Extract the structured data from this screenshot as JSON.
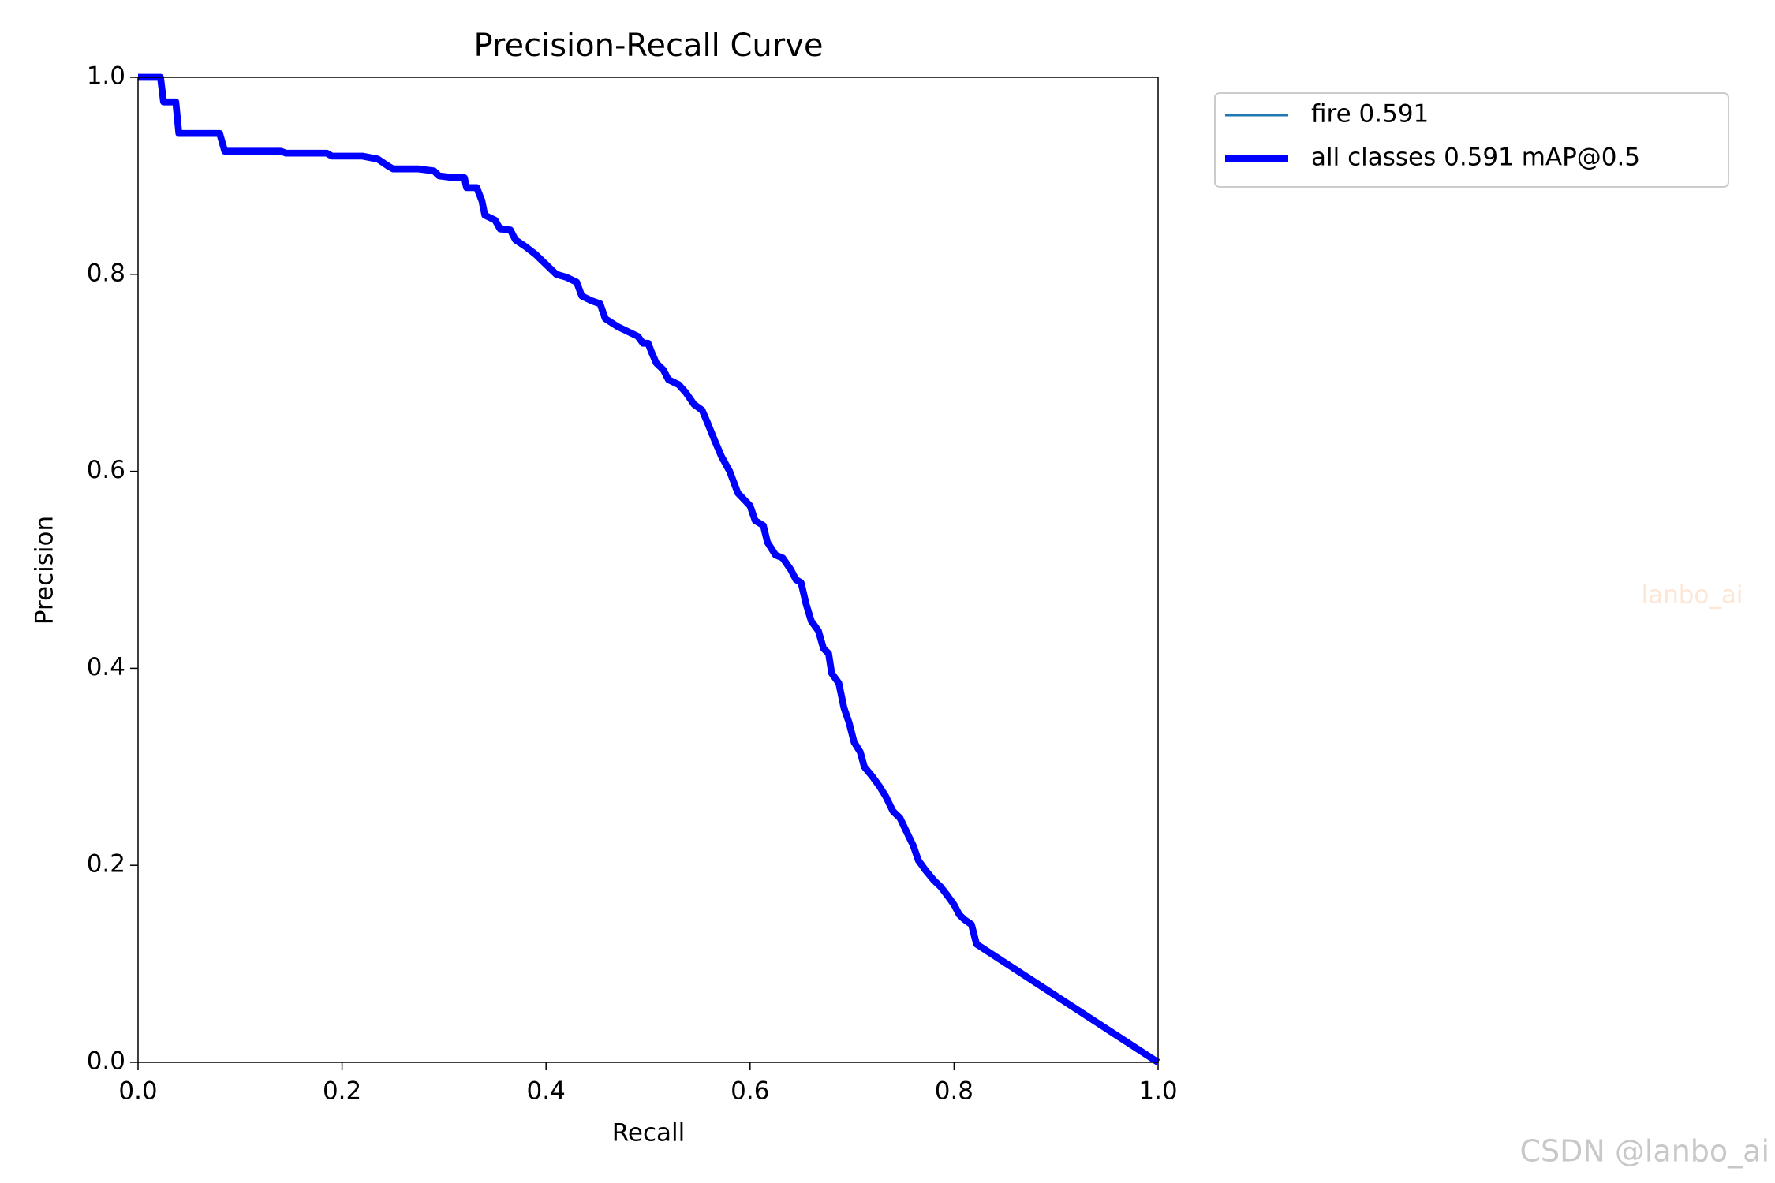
{
  "chart_data": {
    "type": "line",
    "title": "Precision-Recall Curve",
    "xlabel": "Recall",
    "ylabel": "Precision",
    "xlim": [
      0,
      1
    ],
    "ylim": [
      0,
      1
    ],
    "xticks": [
      {
        "value": 0,
        "label": "0.0"
      },
      0.2,
      0.4,
      0.6,
      0.8,
      {
        "value": 1,
        "label": "1.0"
      }
    ],
    "yticks": [
      {
        "value": 0,
        "label": "0.0"
      },
      0.2,
      0.4,
      0.6,
      0.8,
      {
        "value": 1,
        "label": "1.0"
      }
    ],
    "legend": "outside upper right",
    "x": [
      0,
      0.022,
      0.025,
      0.037,
      0.04,
      0.08,
      0.085,
      0.14,
      0.145,
      0.185,
      0.19,
      0.22,
      0.235,
      0.245,
      0.25,
      0.275,
      0.29,
      0.295,
      0.31,
      0.32,
      0.322,
      0.332,
      0.337,
      0.34,
      0.35,
      0.355,
      0.365,
      0.37,
      0.38,
      0.39,
      0.4,
      0.41,
      0.42,
      0.43,
      0.435,
      0.445,
      0.453,
      0.458,
      0.47,
      0.48,
      0.49,
      0.495,
      0.5,
      0.503,
      0.508,
      0.515,
      0.52,
      0.53,
      0.537,
      0.545,
      0.553,
      0.558,
      0.565,
      0.572,
      0.58,
      0.588,
      0.6,
      0.605,
      0.613,
      0.617,
      0.625,
      0.632,
      0.64,
      0.645,
      0.65,
      0.655,
      0.66,
      0.667,
      0.672,
      0.677,
      0.68,
      0.687,
      0.692,
      0.697,
      0.702,
      0.708,
      0.712,
      0.72,
      0.727,
      0.733,
      0.74,
      0.747,
      0.753,
      0.76,
      0.765,
      0.772,
      0.78,
      0.787,
      0.793,
      0.8,
      0.805,
      0.81,
      0.817,
      0.822,
      1.0
    ],
    "series": [
      {
        "name": "fire 0.591",
        "color": "#1f77b4",
        "width": 1,
        "values": [
          1,
          1,
          0.975,
          0.975,
          0.943,
          0.943,
          0.925,
          0.925,
          0.923,
          0.923,
          0.92,
          0.92,
          0.917,
          0.91,
          0.907,
          0.907,
          0.905,
          0.9,
          0.898,
          0.898,
          0.888,
          0.888,
          0.875,
          0.86,
          0.855,
          0.846,
          0.845,
          0.835,
          0.828,
          0.82,
          0.81,
          0.8,
          0.797,
          0.792,
          0.778,
          0.773,
          0.77,
          0.755,
          0.747,
          0.742,
          0.737,
          0.73,
          0.73,
          0.722,
          0.71,
          0.703,
          0.693,
          0.688,
          0.68,
          0.668,
          0.662,
          0.65,
          0.632,
          0.615,
          0.6,
          0.578,
          0.565,
          0.55,
          0.545,
          0.528,
          0.515,
          0.512,
          0.5,
          0.49,
          0.487,
          0.465,
          0.448,
          0.438,
          0.42,
          0.415,
          0.395,
          0.385,
          0.36,
          0.345,
          0.325,
          0.315,
          0.3,
          0.29,
          0.28,
          0.27,
          0.255,
          0.248,
          0.235,
          0.22,
          0.205,
          0.195,
          0.185,
          0.178,
          0.17,
          0.16,
          0.15,
          0.145,
          0.14,
          0.12,
          0
        ]
      },
      {
        "name": "all classes 0.591 mAP@0.5",
        "color": "#0000ff",
        "width": 3,
        "values": [
          1,
          1,
          0.975,
          0.975,
          0.943,
          0.943,
          0.925,
          0.925,
          0.923,
          0.923,
          0.92,
          0.92,
          0.917,
          0.91,
          0.907,
          0.907,
          0.905,
          0.9,
          0.898,
          0.898,
          0.888,
          0.888,
          0.875,
          0.86,
          0.855,
          0.846,
          0.845,
          0.835,
          0.828,
          0.82,
          0.81,
          0.8,
          0.797,
          0.792,
          0.778,
          0.773,
          0.77,
          0.755,
          0.747,
          0.742,
          0.737,
          0.73,
          0.73,
          0.722,
          0.71,
          0.703,
          0.693,
          0.688,
          0.68,
          0.668,
          0.662,
          0.65,
          0.632,
          0.615,
          0.6,
          0.578,
          0.565,
          0.55,
          0.545,
          0.528,
          0.515,
          0.512,
          0.5,
          0.49,
          0.487,
          0.465,
          0.448,
          0.438,
          0.42,
          0.415,
          0.395,
          0.385,
          0.36,
          0.345,
          0.325,
          0.315,
          0.3,
          0.29,
          0.28,
          0.27,
          0.255,
          0.248,
          0.235,
          0.22,
          0.205,
          0.195,
          0.185,
          0.178,
          0.17,
          0.16,
          0.15,
          0.145,
          0.14,
          0.12,
          0
        ]
      }
    ]
  },
  "watermarks": [
    "lanbo_ai",
    "CSDN @lanbo_ai"
  ]
}
